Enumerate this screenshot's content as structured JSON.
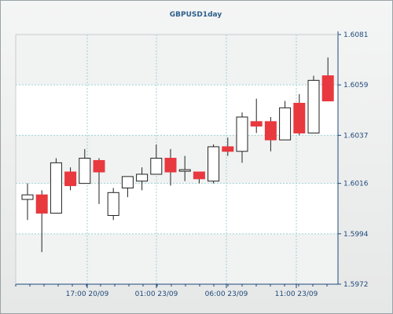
{
  "chart_data": {
    "type": "candlestick",
    "title": "GBPUSD1day",
    "ylim": [
      1.5972,
      1.6081
    ],
    "y_ticks": [
      "1.6081",
      "1.6059",
      "1.6037",
      "1.6016",
      "1.5994",
      "1.5972"
    ],
    "x_ticks": [
      "17:00 20/09",
      "01:00 23/09",
      "06:00 23/09",
      "11:00 23/09"
    ],
    "grid": true,
    "colors": {
      "up": "#ffffff",
      "down": "#e8393f",
      "wick": "#222222",
      "grid": "#9fd3d3",
      "axis": "#1f4a7a",
      "title": "#2e5f8a"
    },
    "candles": [
      {
        "o": 1.6009,
        "h": 1.6016,
        "l": 1.6,
        "c": 1.6011
      },
      {
        "o": 1.6011,
        "h": 1.6013,
        "l": 1.5986,
        "c": 1.6003
      },
      {
        "o": 1.6003,
        "h": 1.6027,
        "l": 1.6003,
        "c": 1.6025
      },
      {
        "o": 1.6021,
        "h": 1.6023,
        "l": 1.6013,
        "c": 1.6015
      },
      {
        "o": 1.6016,
        "h": 1.6031,
        "l": 1.6016,
        "c": 1.6027
      },
      {
        "o": 1.6026,
        "h": 1.6027,
        "l": 1.6007,
        "c": 1.6021
      },
      {
        "o": 1.6002,
        "h": 1.6014,
        "l": 1.6,
        "c": 1.6012
      },
      {
        "o": 1.6014,
        "h": 1.6019,
        "l": 1.601,
        "c": 1.6019
      },
      {
        "o": 1.6017,
        "h": 1.6023,
        "l": 1.6013,
        "c": 1.602
      },
      {
        "o": 1.602,
        "h": 1.6033,
        "l": 1.602,
        "c": 1.6027
      },
      {
        "o": 1.6027,
        "h": 1.6031,
        "l": 1.6015,
        "c": 1.6021
      },
      {
        "o": 1.6022,
        "h": 1.6028,
        "l": 1.6017,
        "c": 1.6022
      },
      {
        "o": 1.6021,
        "h": 1.6021,
        "l": 1.6016,
        "c": 1.6018
      },
      {
        "o": 1.6017,
        "h": 1.6033,
        "l": 1.6016,
        "c": 1.6032
      },
      {
        "o": 1.6032,
        "h": 1.6036,
        "l": 1.6028,
        "c": 1.603
      },
      {
        "o": 1.603,
        "h": 1.6047,
        "l": 1.6025,
        "c": 1.6045
      },
      {
        "o": 1.6043,
        "h": 1.6053,
        "l": 1.6038,
        "c": 1.6041
      },
      {
        "o": 1.6043,
        "h": 1.6045,
        "l": 1.603,
        "c": 1.6035
      },
      {
        "o": 1.6035,
        "h": 1.6052,
        "l": 1.6035,
        "c": 1.6049
      },
      {
        "o": 1.6051,
        "h": 1.6055,
        "l": 1.6037,
        "c": 1.6038
      },
      {
        "o": 1.6038,
        "h": 1.6063,
        "l": 1.6038,
        "c": 1.6061
      },
      {
        "o": 1.6063,
        "h": 1.6071,
        "l": 1.6052,
        "c": 1.6052
      }
    ]
  }
}
